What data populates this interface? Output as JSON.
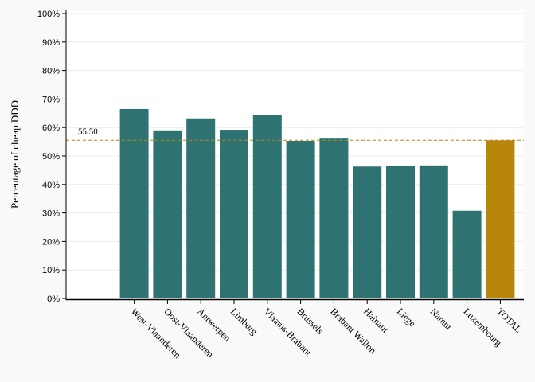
{
  "chart_data": {
    "type": "bar",
    "title": "",
    "xlabel": "",
    "ylabel": "Percentage of cheap DDD",
    "ylim": [
      0,
      100
    ],
    "yticks": [
      "0%",
      "10%",
      "20%",
      "30%",
      "40%",
      "50%",
      "60%",
      "70%",
      "80%",
      "90%",
      "100%"
    ],
    "categories": [
      "West-Vlaanderen",
      "Oost-Vlaanderen",
      "Antwerpen",
      "Limburg",
      "Vlaams-Brabant",
      "Brussels",
      "Brabant Wallon",
      "Hainaut",
      "Liège",
      "Namur",
      "Luxembourg",
      "TOTAL"
    ],
    "values": [
      66.5,
      59,
      63.2,
      59.2,
      64.3,
      55.3,
      56.1,
      46.3,
      46.6,
      46.7,
      30.8,
      55.5
    ],
    "reference_line": {
      "value": 55.5,
      "label": "55.50"
    },
    "colors": {
      "bar": "#2e7371",
      "total_bar": "#b8860b",
      "reference_line": "#b8860b",
      "background": "#f9f9f9"
    },
    "grid": true,
    "legend": "none"
  }
}
